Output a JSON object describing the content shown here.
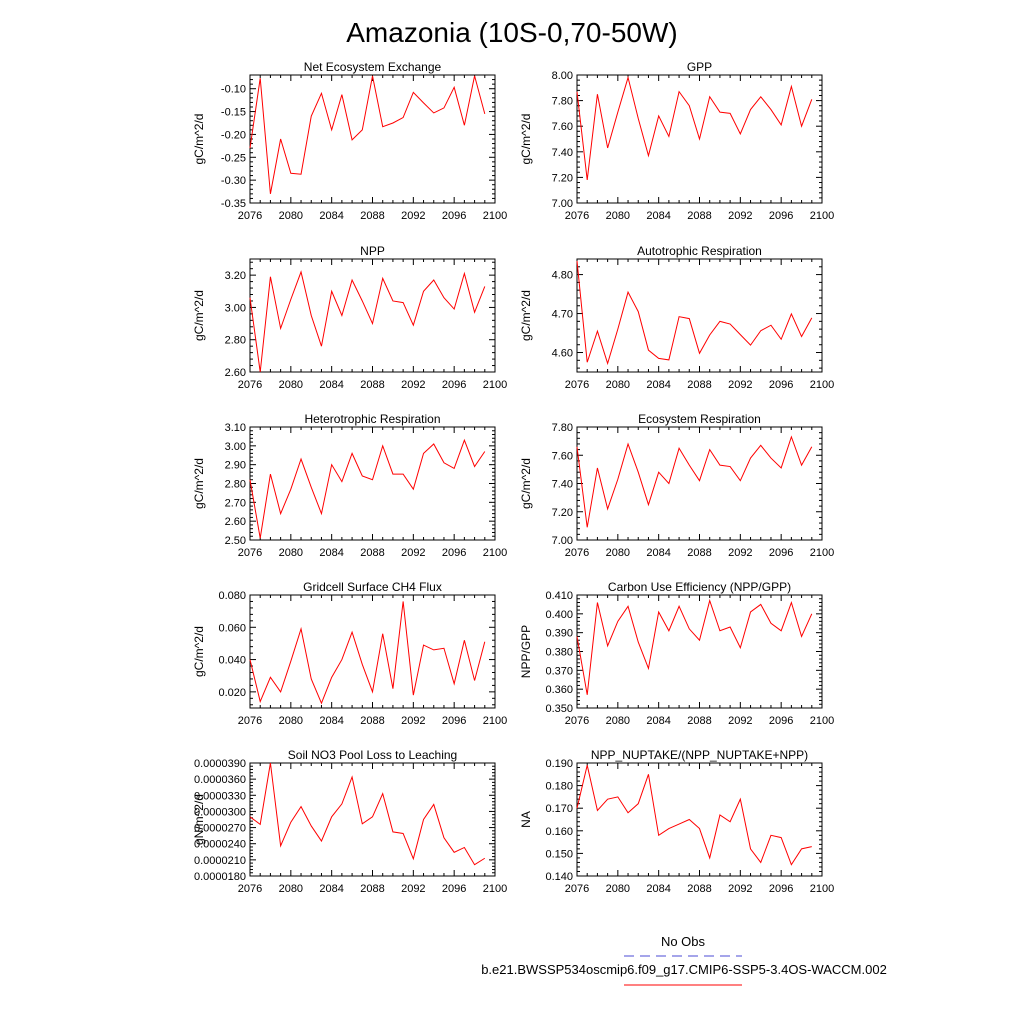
{
  "figure": {
    "title": "Amazonia (10S-0,70-50W)",
    "legend": {
      "obs_label": "No Obs",
      "obs_color": "#4b4bd6",
      "case_label": "b.e21.BWSSP534oscmip6.f09_g17.CMIP6-SSP5-3.4OS-WACCM.002",
      "case_color": "#ff0000"
    }
  },
  "chart_data": [
    {
      "type": "line",
      "title": "Net Ecosystem Exchange",
      "ylabel": "gC/m^2/d",
      "xlim": [
        2076,
        2100
      ],
      "ylim": [
        -0.35,
        -0.07
      ],
      "xticks": [
        2076,
        2080,
        2084,
        2088,
        2092,
        2096,
        2100
      ],
      "yticks": [
        -0.35,
        -0.3,
        -0.25,
        -0.2,
        -0.15,
        -0.1
      ],
      "ytick_labels": [
        "-0.35",
        "-0.30",
        "-0.25",
        "-0.20",
        "-0.15",
        "-0.10"
      ],
      "x": [
        2076,
        2077,
        2078,
        2079,
        2080,
        2081,
        2082,
        2083,
        2084,
        2085,
        2086,
        2087,
        2088,
        2089,
        2090,
        2091,
        2092,
        2093,
        2094,
        2095,
        2096,
        2097,
        2098,
        2099
      ],
      "series": [
        {
          "color": "#ff0000",
          "values": [
            -0.23,
            -0.077,
            -0.33,
            -0.21,
            -0.285,
            -0.287,
            -0.16,
            -0.11,
            -0.19,
            -0.113,
            -0.212,
            -0.19,
            -0.072,
            -0.183,
            -0.175,
            -0.163,
            -0.108,
            -0.131,
            -0.153,
            -0.142,
            -0.097,
            -0.18,
            -0.072,
            -0.155
          ]
        }
      ]
    },
    {
      "type": "line",
      "title": "GPP",
      "ylabel": "gC/m^2/d",
      "xlim": [
        2076,
        2100
      ],
      "ylim": [
        7.0,
        8.0
      ],
      "xticks": [
        2076,
        2080,
        2084,
        2088,
        2092,
        2096,
        2100
      ],
      "yticks": [
        7.0,
        7.2,
        7.4,
        7.6,
        7.8,
        8.0
      ],
      "ytick_labels": [
        "7.00",
        "7.20",
        "7.40",
        "7.60",
        "7.80",
        "8.00"
      ],
      "x": [
        2076,
        2077,
        2078,
        2079,
        2080,
        2081,
        2082,
        2083,
        2084,
        2085,
        2086,
        2087,
        2088,
        2089,
        2090,
        2091,
        2092,
        2093,
        2094,
        2095,
        2096,
        2097,
        2098,
        2099
      ],
      "series": [
        {
          "color": "#ff0000",
          "values": [
            7.87,
            7.18,
            7.85,
            7.43,
            7.71,
            7.98,
            7.66,
            7.37,
            7.68,
            7.52,
            7.87,
            7.76,
            7.5,
            7.83,
            7.71,
            7.7,
            7.54,
            7.73,
            7.83,
            7.73,
            7.61,
            7.91,
            7.6,
            7.81
          ]
        }
      ]
    },
    {
      "type": "line",
      "title": "NPP",
      "ylabel": "gC/m^2/d",
      "xlim": [
        2076,
        2100
      ],
      "ylim": [
        2.6,
        3.3
      ],
      "xticks": [
        2076,
        2080,
        2084,
        2088,
        2092,
        2096,
        2100
      ],
      "yticks": [
        2.6,
        2.8,
        3.0,
        3.2
      ],
      "ytick_labels": [
        "2.60",
        "2.80",
        "3.00",
        "3.20"
      ],
      "x": [
        2076,
        2077,
        2078,
        2079,
        2080,
        2081,
        2082,
        2083,
        2084,
        2085,
        2086,
        2087,
        2088,
        2089,
        2090,
        2091,
        2092,
        2093,
        2094,
        2095,
        2096,
        2097,
        2098,
        2099
      ],
      "series": [
        {
          "color": "#ff0000",
          "values": [
            3.06,
            2.6,
            3.19,
            2.87,
            3.05,
            3.22,
            2.95,
            2.76,
            3.1,
            2.95,
            3.17,
            3.04,
            2.9,
            3.18,
            3.04,
            3.03,
            2.89,
            3.1,
            3.17,
            3.06,
            2.99,
            3.21,
            2.97,
            3.13
          ]
        }
      ]
    },
    {
      "type": "line",
      "title": "Autotrophic Respiration",
      "ylabel": "gC/m^2/d",
      "xlim": [
        2076,
        2100
      ],
      "ylim": [
        4.55,
        4.84
      ],
      "xticks": [
        2076,
        2080,
        2084,
        2088,
        2092,
        2096,
        2100
      ],
      "yticks": [
        4.6,
        4.7,
        4.8
      ],
      "ytick_labels": [
        "4.60",
        "4.70",
        "4.80"
      ],
      "x": [
        2076,
        2077,
        2078,
        2079,
        2080,
        2081,
        2082,
        2083,
        2084,
        2085,
        2086,
        2087,
        2088,
        2089,
        2090,
        2091,
        2092,
        2093,
        2094,
        2095,
        2096,
        2097,
        2098,
        2099
      ],
      "series": [
        {
          "color": "#ff0000",
          "values": [
            4.835,
            4.575,
            4.655,
            4.572,
            4.66,
            4.755,
            4.705,
            4.606,
            4.585,
            4.581,
            4.692,
            4.687,
            4.598,
            4.645,
            4.68,
            4.673,
            4.646,
            4.619,
            4.656,
            4.67,
            4.634,
            4.699,
            4.641,
            4.689
          ]
        }
      ]
    },
    {
      "type": "line",
      "title": "Heterotrophic Respiration",
      "ylabel": "gC/m^2/d",
      "xlim": [
        2076,
        2100
      ],
      "ylim": [
        2.5,
        3.1
      ],
      "xticks": [
        2076,
        2080,
        2084,
        2088,
        2092,
        2096,
        2100
      ],
      "yticks": [
        2.5,
        2.6,
        2.7,
        2.8,
        2.9,
        3.0,
        3.1
      ],
      "ytick_labels": [
        "2.50",
        "2.60",
        "2.70",
        "2.80",
        "2.90",
        "3.00",
        "3.10"
      ],
      "x": [
        2076,
        2077,
        2078,
        2079,
        2080,
        2081,
        2082,
        2083,
        2084,
        2085,
        2086,
        2087,
        2088,
        2089,
        2090,
        2091,
        2092,
        2093,
        2094,
        2095,
        2096,
        2097,
        2098,
        2099
      ],
      "series": [
        {
          "color": "#ff0000",
          "values": [
            2.82,
            2.51,
            2.85,
            2.64,
            2.77,
            2.93,
            2.78,
            2.64,
            2.9,
            2.81,
            2.96,
            2.84,
            2.82,
            3.0,
            2.85,
            2.85,
            2.77,
            2.96,
            3.01,
            2.91,
            2.88,
            3.03,
            2.89,
            2.97
          ]
        }
      ]
    },
    {
      "type": "line",
      "title": "Ecosystem Respiration",
      "ylabel": "gC/m^2/d",
      "xlim": [
        2076,
        2100
      ],
      "ylim": [
        7.0,
        7.8
      ],
      "xticks": [
        2076,
        2080,
        2084,
        2088,
        2092,
        2096,
        2100
      ],
      "yticks": [
        7.0,
        7.2,
        7.4,
        7.6,
        7.8
      ],
      "ytick_labels": [
        "7.00",
        "7.20",
        "7.40",
        "7.60",
        "7.80"
      ],
      "x": [
        2076,
        2077,
        2078,
        2079,
        2080,
        2081,
        2082,
        2083,
        2084,
        2085,
        2086,
        2087,
        2088,
        2089,
        2090,
        2091,
        2092,
        2093,
        2094,
        2095,
        2096,
        2097,
        2098,
        2099
      ],
      "series": [
        {
          "color": "#ff0000",
          "values": [
            7.66,
            7.09,
            7.51,
            7.22,
            7.43,
            7.68,
            7.48,
            7.25,
            7.48,
            7.4,
            7.65,
            7.53,
            7.42,
            7.64,
            7.53,
            7.52,
            7.42,
            7.58,
            7.67,
            7.58,
            7.51,
            7.73,
            7.53,
            7.66
          ]
        }
      ]
    },
    {
      "type": "line",
      "title": "Gridcell Surface CH4 Flux",
      "ylabel": "gC/m^2/d",
      "xlim": [
        2076,
        2100
      ],
      "ylim": [
        0.01,
        0.08
      ],
      "xticks": [
        2076,
        2080,
        2084,
        2088,
        2092,
        2096,
        2100
      ],
      "yticks": [
        0.02,
        0.04,
        0.06,
        0.08
      ],
      "ytick_labels": [
        "0.020",
        "0.040",
        "0.060",
        "0.080"
      ],
      "x": [
        2076,
        2077,
        2078,
        2079,
        2080,
        2081,
        2082,
        2083,
        2084,
        2085,
        2086,
        2087,
        2088,
        2089,
        2090,
        2091,
        2092,
        2093,
        2094,
        2095,
        2096,
        2097,
        2098,
        2099
      ],
      "series": [
        {
          "color": "#ff0000",
          "values": [
            0.04,
            0.014,
            0.029,
            0.02,
            0.039,
            0.059,
            0.028,
            0.013,
            0.029,
            0.04,
            0.057,
            0.037,
            0.02,
            0.056,
            0.022,
            0.076,
            0.018,
            0.049,
            0.046,
            0.047,
            0.025,
            0.052,
            0.027,
            0.051
          ]
        }
      ]
    },
    {
      "type": "line",
      "title": "Carbon Use Efficiency (NPP/GPP)",
      "ylabel": "NPP/GPP",
      "xlim": [
        2076,
        2100
      ],
      "ylim": [
        0.35,
        0.41
      ],
      "xticks": [
        2076,
        2080,
        2084,
        2088,
        2092,
        2096,
        2100
      ],
      "yticks": [
        0.35,
        0.36,
        0.37,
        0.38,
        0.39,
        0.4,
        0.41
      ],
      "ytick_labels": [
        "0.350",
        "0.360",
        "0.370",
        "0.380",
        "0.390",
        "0.400",
        "0.410"
      ],
      "x": [
        2076,
        2077,
        2078,
        2079,
        2080,
        2081,
        2082,
        2083,
        2084,
        2085,
        2086,
        2087,
        2088,
        2089,
        2090,
        2091,
        2092,
        2093,
        2094,
        2095,
        2096,
        2097,
        2098,
        2099
      ],
      "series": [
        {
          "color": "#ff0000",
          "values": [
            0.388,
            0.357,
            0.406,
            0.383,
            0.396,
            0.404,
            0.385,
            0.371,
            0.401,
            0.391,
            0.404,
            0.392,
            0.386,
            0.407,
            0.391,
            0.393,
            0.382,
            0.401,
            0.405,
            0.395,
            0.391,
            0.406,
            0.388,
            0.4
          ]
        }
      ]
    },
    {
      "type": "line",
      "title": "Soil NO3 Pool Loss to Leaching",
      "ylabel": "gN/m^2/d",
      "xlim": [
        2076,
        2100
      ],
      "ylim": [
        1.8e-05,
        3.9e-05
      ],
      "xticks": [
        2076,
        2080,
        2084,
        2088,
        2092,
        2096,
        2100
      ],
      "yticks": [
        1.8e-05,
        2.1e-05,
        2.4e-05,
        2.7e-05,
        3e-05,
        3.3e-05,
        3.6e-05,
        3.9e-05
      ],
      "ytick_labels": [
        "0.0000180",
        "0.0000210",
        "0.0000240",
        "0.0000270",
        "0.0000300",
        "0.0000330",
        "0.0000360",
        "0.0000390"
      ],
      "x": [
        2076,
        2077,
        2078,
        2079,
        2080,
        2081,
        2082,
        2083,
        2084,
        2085,
        2086,
        2087,
        2088,
        2089,
        2090,
        2091,
        2092,
        2093,
        2094,
        2095,
        2096,
        2097,
        2098,
        2099
      ],
      "series": [
        {
          "color": "#ff0000",
          "values": [
            2.9e-05,
            2.76e-05,
            3.9e-05,
            2.36e-05,
            2.8e-05,
            3.09e-05,
            2.73e-05,
            2.45e-05,
            2.9e-05,
            3.14e-05,
            3.64e-05,
            2.77e-05,
            2.9e-05,
            3.33e-05,
            2.62e-05,
            2.59e-05,
            2.12e-05,
            2.85e-05,
            3.13e-05,
            2.51e-05,
            2.24e-05,
            2.33e-05,
            2.01e-05,
            2.13e-05
          ]
        }
      ]
    },
    {
      "type": "line",
      "title": "NPP_NUPTAKE/(NPP_NUPTAKE+NPP)",
      "ylabel": "NA",
      "xlim": [
        2076,
        2100
      ],
      "ylim": [
        0.14,
        0.19
      ],
      "xticks": [
        2076,
        2080,
        2084,
        2088,
        2092,
        2096,
        2100
      ],
      "yticks": [
        0.14,
        0.15,
        0.16,
        0.17,
        0.18,
        0.19
      ],
      "ytick_labels": [
        "0.140",
        "0.150",
        "0.160",
        "0.170",
        "0.180",
        "0.190"
      ],
      "x": [
        2076,
        2077,
        2078,
        2079,
        2080,
        2081,
        2082,
        2083,
        2084,
        2085,
        2086,
        2087,
        2088,
        2089,
        2090,
        2091,
        2092,
        2093,
        2094,
        2095,
        2096,
        2097,
        2098,
        2099
      ],
      "series": [
        {
          "color": "#ff0000",
          "values": [
            0.17,
            0.189,
            0.169,
            0.174,
            0.175,
            0.168,
            0.172,
            0.185,
            0.158,
            0.161,
            0.163,
            0.165,
            0.161,
            0.148,
            0.167,
            0.164,
            0.174,
            0.152,
            0.146,
            0.158,
            0.157,
            0.145,
            0.152,
            0.153
          ]
        }
      ]
    }
  ]
}
